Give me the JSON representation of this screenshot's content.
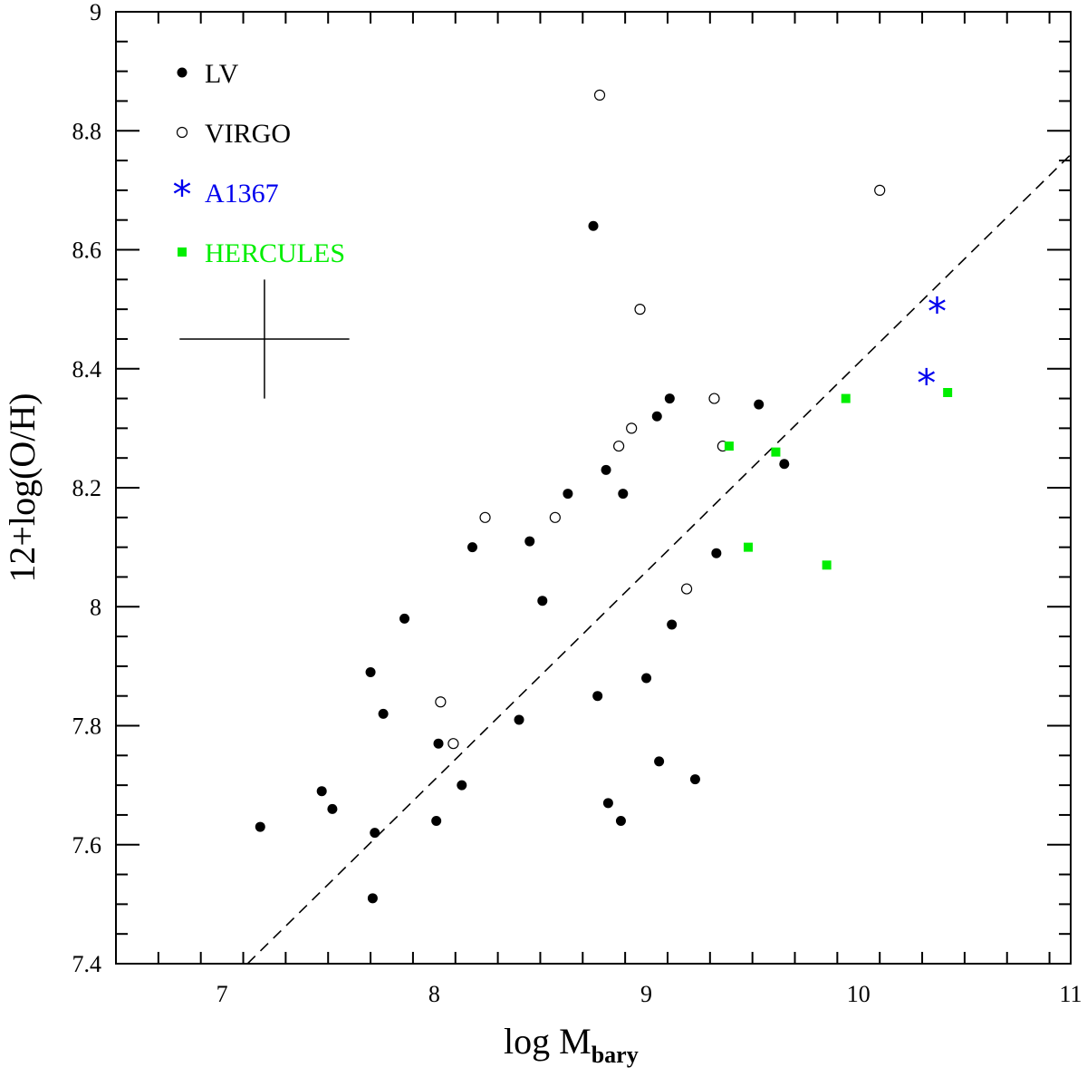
{
  "chart_data": {
    "type": "scatter",
    "xlabel": "log M",
    "xlabel_sub": "bary",
    "ylabel": "12+log(O/H)",
    "xlim": [
      6.5,
      11
    ],
    "ylim": [
      7.4,
      9
    ],
    "x_ticks": [
      "7",
      "8",
      "9",
      "10",
      "11"
    ],
    "y_ticks": [
      "7.4",
      "7.6",
      "7.8",
      "8",
      "8.2",
      "8.4",
      "8.6",
      "8.8",
      "9"
    ],
    "fit_line": {
      "style": "dashed",
      "x": [
        7.12,
        11.0
      ],
      "y": [
        7.4,
        8.76
      ]
    },
    "error_bar": {
      "x_center": 7.2,
      "y_center": 8.45,
      "x_halfwidth": 0.4,
      "y_halfwidth": 0.1
    },
    "series": [
      {
        "name": "LV",
        "marker": "filled-circle",
        "color": "#000000",
        "points": [
          [
            7.18,
            7.63
          ],
          [
            7.47,
            7.69
          ],
          [
            7.52,
            7.66
          ],
          [
            7.7,
            7.89
          ],
          [
            7.71,
            7.51
          ],
          [
            7.72,
            7.62
          ],
          [
            7.76,
            7.82
          ],
          [
            7.86,
            7.98
          ],
          [
            8.01,
            7.64
          ],
          [
            8.02,
            7.77
          ],
          [
            8.13,
            7.7
          ],
          [
            8.18,
            8.1
          ],
          [
            8.4,
            7.81
          ],
          [
            8.45,
            8.11
          ],
          [
            8.51,
            8.01
          ],
          [
            8.63,
            8.19
          ],
          [
            8.75,
            8.64
          ],
          [
            8.77,
            7.85
          ],
          [
            8.81,
            8.23
          ],
          [
            8.82,
            7.67
          ],
          [
            8.88,
            7.64
          ],
          [
            8.89,
            8.19
          ],
          [
            9.0,
            7.88
          ],
          [
            9.05,
            8.32
          ],
          [
            9.06,
            7.74
          ],
          [
            9.11,
            8.35
          ],
          [
            9.12,
            7.97
          ],
          [
            9.23,
            7.71
          ],
          [
            9.33,
            8.09
          ],
          [
            9.53,
            8.34
          ],
          [
            9.65,
            8.24
          ]
        ]
      },
      {
        "name": "VIRGO",
        "marker": "open-circle",
        "color": "#000000",
        "points": [
          [
            8.03,
            7.84
          ],
          [
            8.09,
            7.77
          ],
          [
            8.24,
            8.15
          ],
          [
            8.57,
            8.15
          ],
          [
            8.78,
            8.86
          ],
          [
            8.87,
            8.27
          ],
          [
            8.93,
            8.3
          ],
          [
            8.97,
            8.5
          ],
          [
            9.19,
            8.03
          ],
          [
            9.32,
            8.35
          ],
          [
            9.36,
            8.27
          ],
          [
            10.1,
            8.7
          ]
        ]
      },
      {
        "name": "A1367",
        "marker": "star",
        "color": "#0000ee",
        "points": [
          [
            10.32,
            8.38
          ],
          [
            10.37,
            8.5
          ]
        ]
      },
      {
        "name": "HERCULES",
        "marker": "filled-square",
        "color": "#00ee00",
        "points": [
          [
            9.39,
            8.27
          ],
          [
            9.48,
            8.1
          ],
          [
            9.61,
            8.26
          ],
          [
            9.85,
            8.07
          ],
          [
            9.94,
            8.35
          ],
          [
            10.42,
            8.36
          ]
        ]
      }
    ]
  }
}
